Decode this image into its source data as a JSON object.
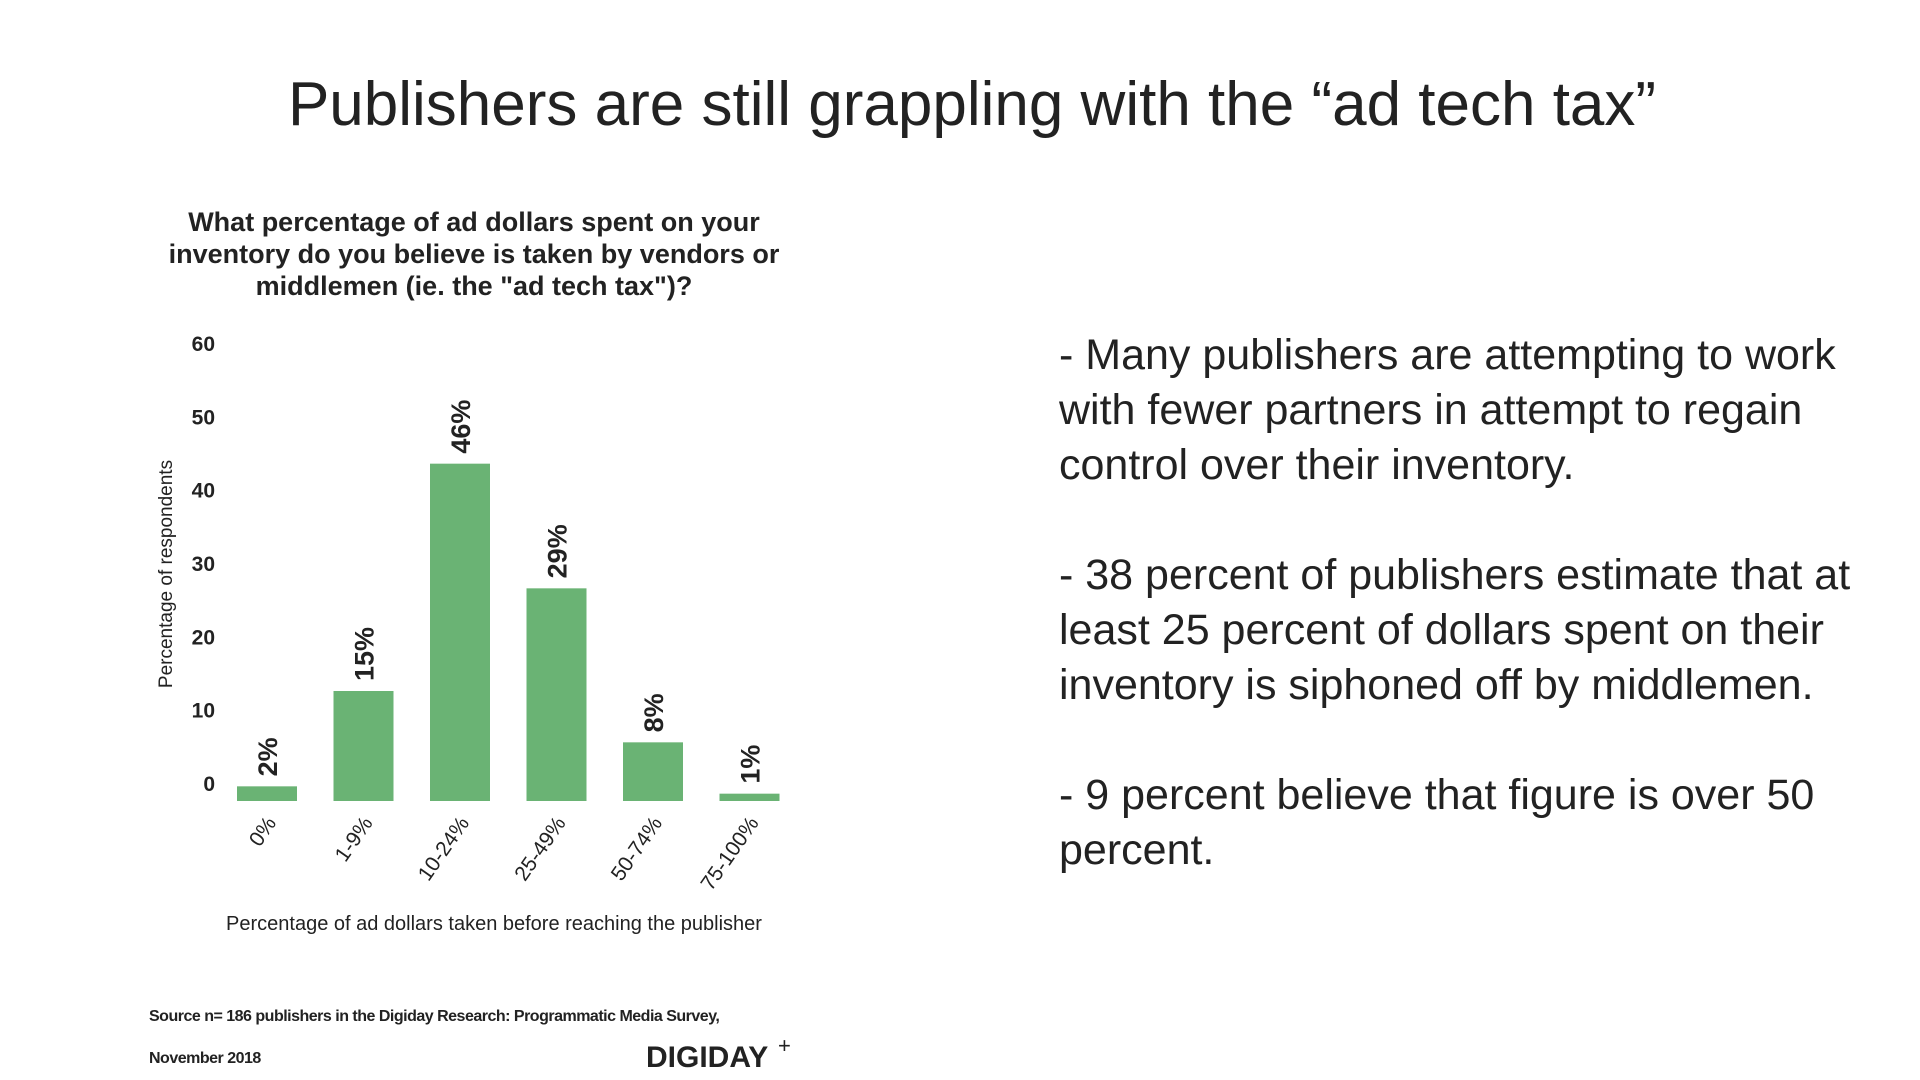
{
  "slide_title": "Publishers are still grappling with the “ad tech tax”",
  "chart_data": {
    "type": "bar",
    "title": [
      "What percentage of ad dollars spent on your",
      "inventory do you believe is taken by vendors or",
      "middlemen (ie. the \"ad tech tax\")?"
    ],
    "categories": [
      "0%",
      "1-9%",
      "10-24%",
      "25-49%",
      "50-74%",
      "75-100%"
    ],
    "values": [
      2,
      15,
      46,
      29,
      8,
      1
    ],
    "value_labels": [
      "2%",
      "15%",
      "46%",
      "29%",
      "8%",
      "1%"
    ],
    "color": "#6ab374",
    "ylim": [
      0,
      60
    ],
    "yticks": [
      0,
      10,
      20,
      30,
      40,
      50,
      60
    ],
    "grid": false,
    "y_label": "Percentage of respondents",
    "x_label": "Percentage of ad dollars taken before reaching the publisher",
    "source": [
      "Source n= 186 publishers in the Digiday Research: Programmatic Media Survey,",
      "November 2018"
    ],
    "logo": "DIGIDAY",
    "logo_sup": "+"
  },
  "bullets": [
    "- Many publishers are attempting to work with fewer partners in attempt to regain control over their inventory.",
    "- 38 percent of publishers estimate that at least 25 percent of dollars spent on their inventory is siphoned off by middlemen.",
    "- 9 percent believe that figure is over 50 percent."
  ]
}
